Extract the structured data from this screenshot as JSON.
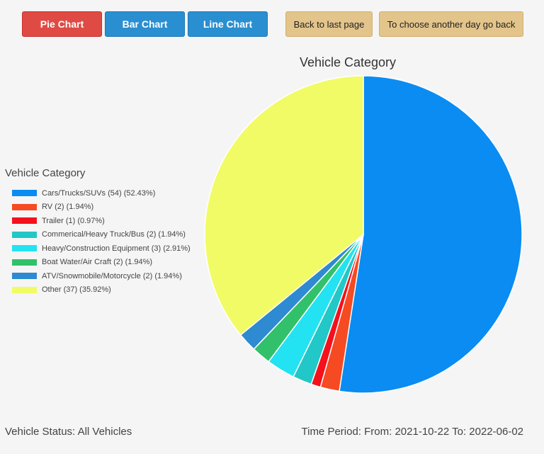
{
  "toolbar": {
    "pie_label": "Pie Chart",
    "bar_label": "Bar Chart",
    "line_label": "Line Chart",
    "back_label": "Back to last page",
    "choose_day_label": "To choose another day go back"
  },
  "chart_data": {
    "type": "pie",
    "title": "Vehicle Category",
    "legend_title": "Vehicle Category",
    "legend_position": "left",
    "slices": [
      {
        "label": "Cars/Trucks/SUVs (54) (52.43%)",
        "value": 54,
        "color": "#0a8cf2"
      },
      {
        "label": "RV (2) (1.94%)",
        "value": 2,
        "color": "#f64a22"
      },
      {
        "label": "Trailer (1) (0.97%)",
        "value": 1,
        "color": "#f4111c"
      },
      {
        "label": "Commerical/Heavy Truck/Bus (2) (1.94%)",
        "value": 2,
        "color": "#22c7c7"
      },
      {
        "label": "Heavy/Construction Equipment (3) (2.91%)",
        "value": 3,
        "color": "#23e2f2"
      },
      {
        "label": "Boat Water/Air Craft  (2) (1.94%)",
        "value": 2,
        "color": "#31c16a"
      },
      {
        "label": "ATV/Snowmobile/Motorcycle (2) (1.94%)",
        "value": 2,
        "color": "#2e8ad1"
      },
      {
        "label": "Other (37) (35.92%)",
        "value": 37,
        "color": "#f1fb65"
      }
    ]
  },
  "footer": {
    "status": "Vehicle Status: All Vehicles",
    "period": "Time Period: From: 2021-10-22 To: 2022-06-02"
  }
}
